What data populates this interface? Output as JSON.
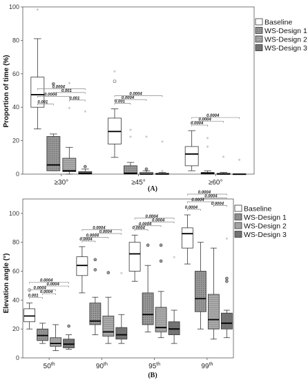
{
  "chart_data": [
    {
      "type": "box",
      "panel_label": "(A)",
      "ylabel": "Proportion of time (%)",
      "ylim": [
        0,
        100
      ],
      "yticks": [
        0,
        20,
        40,
        60,
        80,
        100
      ],
      "categories": [
        "≥30°",
        "≥45°",
        "≥60°"
      ],
      "legend": [
        "Baseline",
        "WS-Design 1",
        "WS-Design 2",
        "WS-Design 3"
      ],
      "series_colors": [
        "#ffffff",
        "#8c8c8c",
        "#a8a8a8",
        "#7a7a7a"
      ],
      "groups": [
        {
          "category": "≥30°",
          "boxes": [
            {
              "series": "Baseline",
              "whislo": 27,
              "q1": 40,
              "med": 47.5,
              "q3": 58,
              "whishi": 81,
              "outliers": [],
              "extremes": [
                98
              ]
            },
            {
              "series": "WS-Design 1",
              "whislo": 2,
              "q1": 2,
              "med": 5.5,
              "q3": 22.5,
              "whishi": 24,
              "outliers": [
                54
              ],
              "extremes": [
                54
              ]
            },
            {
              "series": "WS-Design 2",
              "whislo": 0,
              "q1": 1.5,
              "med": 2,
              "q3": 9.5,
              "whishi": 16,
              "outliers": [],
              "extremes": [
                39,
                54
              ]
            },
            {
              "series": "WS-Design 3",
              "whislo": 0,
              "q1": 0,
              "med": 0.5,
              "q3": 1.5,
              "whishi": 3,
              "outliers": [
                4.5
              ],
              "extremes": [
                37
              ]
            }
          ]
        },
        {
          "category": "≥45°",
          "boxes": [
            {
              "series": "Baseline",
              "whislo": 10,
              "q1": 18,
              "med": 25.5,
              "q3": 33.5,
              "whishi": 39,
              "outliers": [
                55.5
              ],
              "extremes": [
                61
              ]
            },
            {
              "series": "WS-Design 1",
              "whislo": 0,
              "q1": 0,
              "med": 0.5,
              "q3": 5,
              "whishi": 7,
              "outliers": [],
              "extremes": [
                22,
                26
              ]
            },
            {
              "series": "WS-Design 2",
              "whislo": 0,
              "q1": 0,
              "med": 0,
              "q3": 1,
              "whishi": 2,
              "outliers": [
                3
              ],
              "extremes": [
                22
              ]
            },
            {
              "series": "WS-Design 3",
              "whislo": 0,
              "q1": 0,
              "med": 0,
              "q3": 0.5,
              "whishi": 1,
              "outliers": [],
              "extremes": [
                1.5,
                19
              ]
            }
          ]
        },
        {
          "category": "≥60°",
          "boxes": [
            {
              "series": "Baseline",
              "whislo": 2,
              "q1": 5,
              "med": 12,
              "q3": 16.5,
              "whishi": 26,
              "outliers": [],
              "extremes": []
            },
            {
              "series": "WS-Design 1",
              "whislo": 0,
              "q1": 0,
              "med": 0.5,
              "q3": 1,
              "whishi": 2,
              "outliers": [],
              "extremes": [
                16,
                21
              ]
            },
            {
              "series": "WS-Design 2",
              "whislo": 0,
              "q1": 0,
              "med": 0,
              "q3": 0.5,
              "whishi": 1,
              "outliers": [],
              "extremes": [
                10
              ]
            },
            {
              "series": "WS-Design 3",
              "whislo": 0,
              "q1": 0,
              "med": 0,
              "q3": 0,
              "whishi": 0,
              "outliers": [],
              "extremes": [
                8
              ]
            }
          ]
        }
      ],
      "significance": [
        {
          "category": "≥30°",
          "from": "Baseline",
          "to": "WS-Design 1",
          "label": "0.001"
        },
        {
          "category": "≥30°",
          "from": "Baseline",
          "to": "WS-Design 2",
          "label": "0.0004"
        },
        {
          "category": "≥30°",
          "from": "Baseline",
          "to": "WS-Design 3",
          "label": "0.0004"
        },
        {
          "category": "≥30°",
          "from": "WS-Design 1",
          "to": "WS-Design 3",
          "label": "0.001"
        },
        {
          "category": "≥30°",
          "from": "WS-Design 2",
          "to": "WS-Design 3",
          "label": "0.001"
        },
        {
          "category": "≥45°",
          "from": "Baseline",
          "to": "WS-Design 1",
          "label": "0.001"
        },
        {
          "category": "≥45°",
          "from": "Baseline",
          "to": "WS-Design 2",
          "label": "0.0004"
        },
        {
          "category": "≥45°",
          "from": "Baseline",
          "to": "WS-Design 3",
          "label": "0.0004"
        },
        {
          "category": "≥60°",
          "from": "Baseline",
          "to": "WS-Design 1",
          "label": "0.0004"
        },
        {
          "category": "≥60°",
          "from": "Baseline",
          "to": "WS-Design 2",
          "label": "0.0004"
        },
        {
          "category": "≥60°",
          "from": "Baseline",
          "to": "WS-Design 3",
          "label": "0.0004"
        }
      ]
    },
    {
      "type": "box",
      "panel_label": "(B)",
      "ylabel": "Elevation angle (°)",
      "ylim": [
        0,
        110
      ],
      "yticks": [
        0,
        20,
        40,
        60,
        80,
        100
      ],
      "categories": [
        "50",
        "90",
        "95",
        "99"
      ],
      "category_suffix": "th",
      "legend": [
        "Baseline",
        "WS-Design 1",
        "WS-Design 2",
        "WS-Design 3"
      ],
      "series_colors": [
        "#ffffff",
        "#8c8c8c",
        "#a8a8a8",
        "#7a7a7a"
      ],
      "groups": [
        {
          "category": "50",
          "boxes": [
            {
              "series": "Baseline",
              "whislo": 20,
              "q1": 25,
              "med": 29,
              "q3": 34,
              "whishi": 38,
              "outliers": [
                47
              ],
              "extremes": []
            },
            {
              "series": "WS-Design 1",
              "whislo": 10,
              "q1": 12,
              "med": 15.5,
              "q3": 20,
              "whishi": 24,
              "outliers": [],
              "extremes": []
            },
            {
              "series": "WS-Design 2",
              "whislo": 5,
              "q1": 8,
              "med": 10,
              "q3": 14,
              "whishi": 23,
              "outliers": [],
              "extremes": []
            },
            {
              "series": "WS-Design 3",
              "whislo": 6,
              "q1": 7,
              "med": 9.5,
              "q3": 13,
              "whishi": 16,
              "outliers": [
                22
              ],
              "extremes": []
            }
          ]
        },
        {
          "category": "90",
          "boxes": [
            {
              "series": "Baseline",
              "whislo": 45,
              "q1": 57,
              "med": 64,
              "q3": 70,
              "whishi": 77,
              "outliers": [],
              "extremes": []
            },
            {
              "series": "WS-Design 1",
              "whislo": 16,
              "q1": 23,
              "med": 25.5,
              "q3": 38,
              "whishi": 42,
              "outliers": [
                61,
                68
              ],
              "extremes": []
            },
            {
              "series": "WS-Design 2",
              "whislo": 10,
              "q1": 15,
              "med": 18,
              "q3": 29,
              "whishi": 42,
              "outliers": [
                59
              ],
              "extremes": []
            },
            {
              "series": "WS-Design 3",
              "whislo": 10,
              "q1": 13,
              "med": 16,
              "q3": 21,
              "whishi": 30,
              "outliers": [],
              "extremes": [
                58
              ]
            }
          ]
        },
        {
          "category": "95",
          "boxes": [
            {
              "series": "Baseline",
              "whislo": 53,
              "q1": 60,
              "med": 72,
              "q3": 80,
              "whishi": 85,
              "outliers": [],
              "extremes": []
            },
            {
              "series": "WS-Design 1",
              "whislo": 18,
              "q1": 23,
              "med": 30,
              "q3": 45,
              "whishi": 64,
              "outliers": [
                78
              ],
              "extremes": []
            },
            {
              "series": "WS-Design 2",
              "whislo": 14,
              "q1": 18,
              "med": 21,
              "q3": 35,
              "whishi": 46,
              "outliers": [
                67,
                78
              ],
              "extremes": []
            },
            {
              "series": "WS-Design 3",
              "whislo": 10,
              "q1": 16,
              "med": 20,
              "q3": 25,
              "whishi": 33,
              "outliers": [],
              "extremes": [
                69
              ]
            }
          ]
        },
        {
          "category": "99",
          "boxes": [
            {
              "series": "Baseline",
              "whislo": 65,
              "q1": 76,
              "med": 86,
              "q3": 90,
              "whishi": 99,
              "outliers": [],
              "extremes": []
            },
            {
              "series": "WS-Design 1",
              "whislo": 20,
              "q1": 32,
              "med": 41,
              "q3": 60,
              "whishi": 80,
              "outliers": [],
              "extremes": []
            },
            {
              "series": "WS-Design 2",
              "whislo": 13,
              "q1": 20,
              "med": 26.5,
              "q3": 44,
              "whishi": 76,
              "outliers": [],
              "extremes": []
            },
            {
              "series": "WS-Design 3",
              "whislo": 14,
              "q1": 20,
              "med": 24,
              "q3": 31,
              "whishi": 33,
              "outliers": [
                53,
                55
              ],
              "extremes": [
                82
              ]
            }
          ]
        }
      ],
      "significance": [
        {
          "category": "50",
          "from": "Baseline",
          "to": "WS-Design 1",
          "label": "0.001"
        },
        {
          "category": "50",
          "from": "Baseline",
          "to": "WS-Design 2",
          "label": "0.0004"
        },
        {
          "category": "50",
          "from": "Baseline",
          "to": "WS-Design 3",
          "label": "0.0004"
        },
        {
          "category": "50",
          "from": "WS-Design 1",
          "to": "WS-Design 2",
          "label": "0.0004"
        },
        {
          "category": "50",
          "from": "WS-Design 1",
          "to": "WS-Design 3",
          "label": "0.0004"
        },
        {
          "category": "90",
          "from": "Baseline",
          "to": "WS-Design 1",
          "label": "0.0004"
        },
        {
          "category": "90",
          "from": "Baseline",
          "to": "WS-Design 2",
          "label": "0.0004"
        },
        {
          "category": "90",
          "from": "Baseline",
          "to": "WS-Design 3",
          "label": "0.0004"
        },
        {
          "category": "90",
          "from": "WS-Design 1",
          "to": "WS-Design 3",
          "label": "0.0004"
        },
        {
          "category": "95",
          "from": "Baseline",
          "to": "WS-Design 1",
          "label": "0.0004"
        },
        {
          "category": "95",
          "from": "Baseline",
          "to": "WS-Design 2",
          "label": "0.0004"
        },
        {
          "category": "95",
          "from": "Baseline",
          "to": "WS-Design 3",
          "label": "0.0004"
        },
        {
          "category": "95",
          "from": "WS-Design 1",
          "to": "WS-Design 3",
          "label": "0.0004"
        },
        {
          "category": "99",
          "from": "Baseline",
          "to": "WS-Design 1",
          "label": "0.0004"
        },
        {
          "category": "99",
          "from": "Baseline",
          "to": "WS-Design 2",
          "label": "0.0004"
        },
        {
          "category": "99",
          "from": "Baseline",
          "to": "WS-Design 3",
          "label": "0.0004"
        },
        {
          "category": "99",
          "from": "WS-Design 1",
          "to": "WS-Design 3",
          "label": "0.0004"
        },
        {
          "category": "99",
          "from": "WS-Design 2",
          "to": "WS-Design 3",
          "label": "0.0004"
        }
      ]
    }
  ]
}
